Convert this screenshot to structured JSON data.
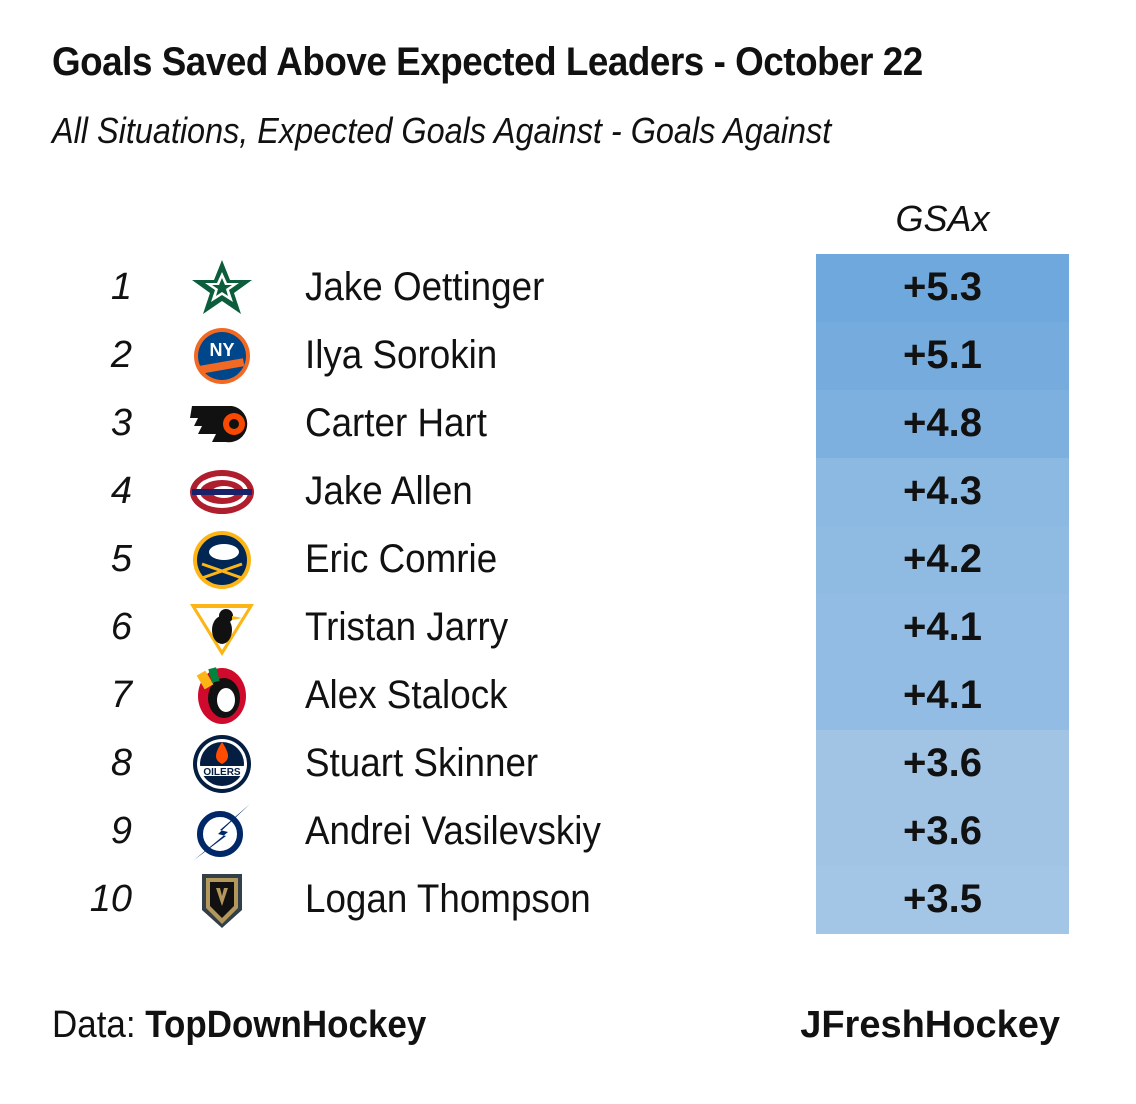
{
  "title": "Goals Saved Above Expected Leaders -  October 22",
  "subtitle": "All Situations, Expected Goals Against - Goals Against",
  "column_header": "GSAx",
  "footer": {
    "data_prefix": "Data: ",
    "data_source": "TopDownHockey",
    "credit": "JFreshHockey"
  },
  "colors": {
    "cell_max": "#6fa8dc",
    "cell_min": "#a4c6e6",
    "text": "#111111"
  },
  "chart_data": {
    "type": "table",
    "columns": [
      "",
      "",
      "",
      "GSAx"
    ],
    "rows": [
      {
        "rank": "1",
        "team_logo": "dallas-stars-logo",
        "player": "Jake Oettinger",
        "gsax": "+5.3",
        "value": 5.3
      },
      {
        "rank": "2",
        "team_logo": "new-york-islanders-logo",
        "player": "Ilya Sorokin",
        "gsax": "+5.1",
        "value": 5.1
      },
      {
        "rank": "3",
        "team_logo": "philadelphia-flyers-logo",
        "player": "Carter Hart",
        "gsax": "+4.8",
        "value": 4.8
      },
      {
        "rank": "4",
        "team_logo": "montreal-canadiens-logo",
        "player": "Jake Allen",
        "gsax": "+4.3",
        "value": 4.3
      },
      {
        "rank": "5",
        "team_logo": "buffalo-sabres-logo",
        "player": "Eric Comrie",
        "gsax": "+4.2",
        "value": 4.2
      },
      {
        "rank": "6",
        "team_logo": "pittsburgh-penguins-logo",
        "player": "Tristan Jarry",
        "gsax": "+4.1",
        "value": 4.1
      },
      {
        "rank": "7",
        "team_logo": "chicago-blackhawks-logo",
        "player": "Alex Stalock",
        "gsax": "+4.1",
        "value": 4.1
      },
      {
        "rank": "8",
        "team_logo": "edmonton-oilers-logo",
        "player": "Stuart Skinner",
        "gsax": "+3.6",
        "value": 3.6
      },
      {
        "rank": "9",
        "team_logo": "tampa-bay-lightning-logo",
        "player": "Andrei Vasilevskiy",
        "gsax": "+3.6",
        "value": 3.6
      },
      {
        "rank": "10",
        "team_logo": "vegas-golden-knights-logo",
        "player": "Logan Thompson",
        "gsax": "+3.5",
        "value": 3.5
      }
    ]
  }
}
